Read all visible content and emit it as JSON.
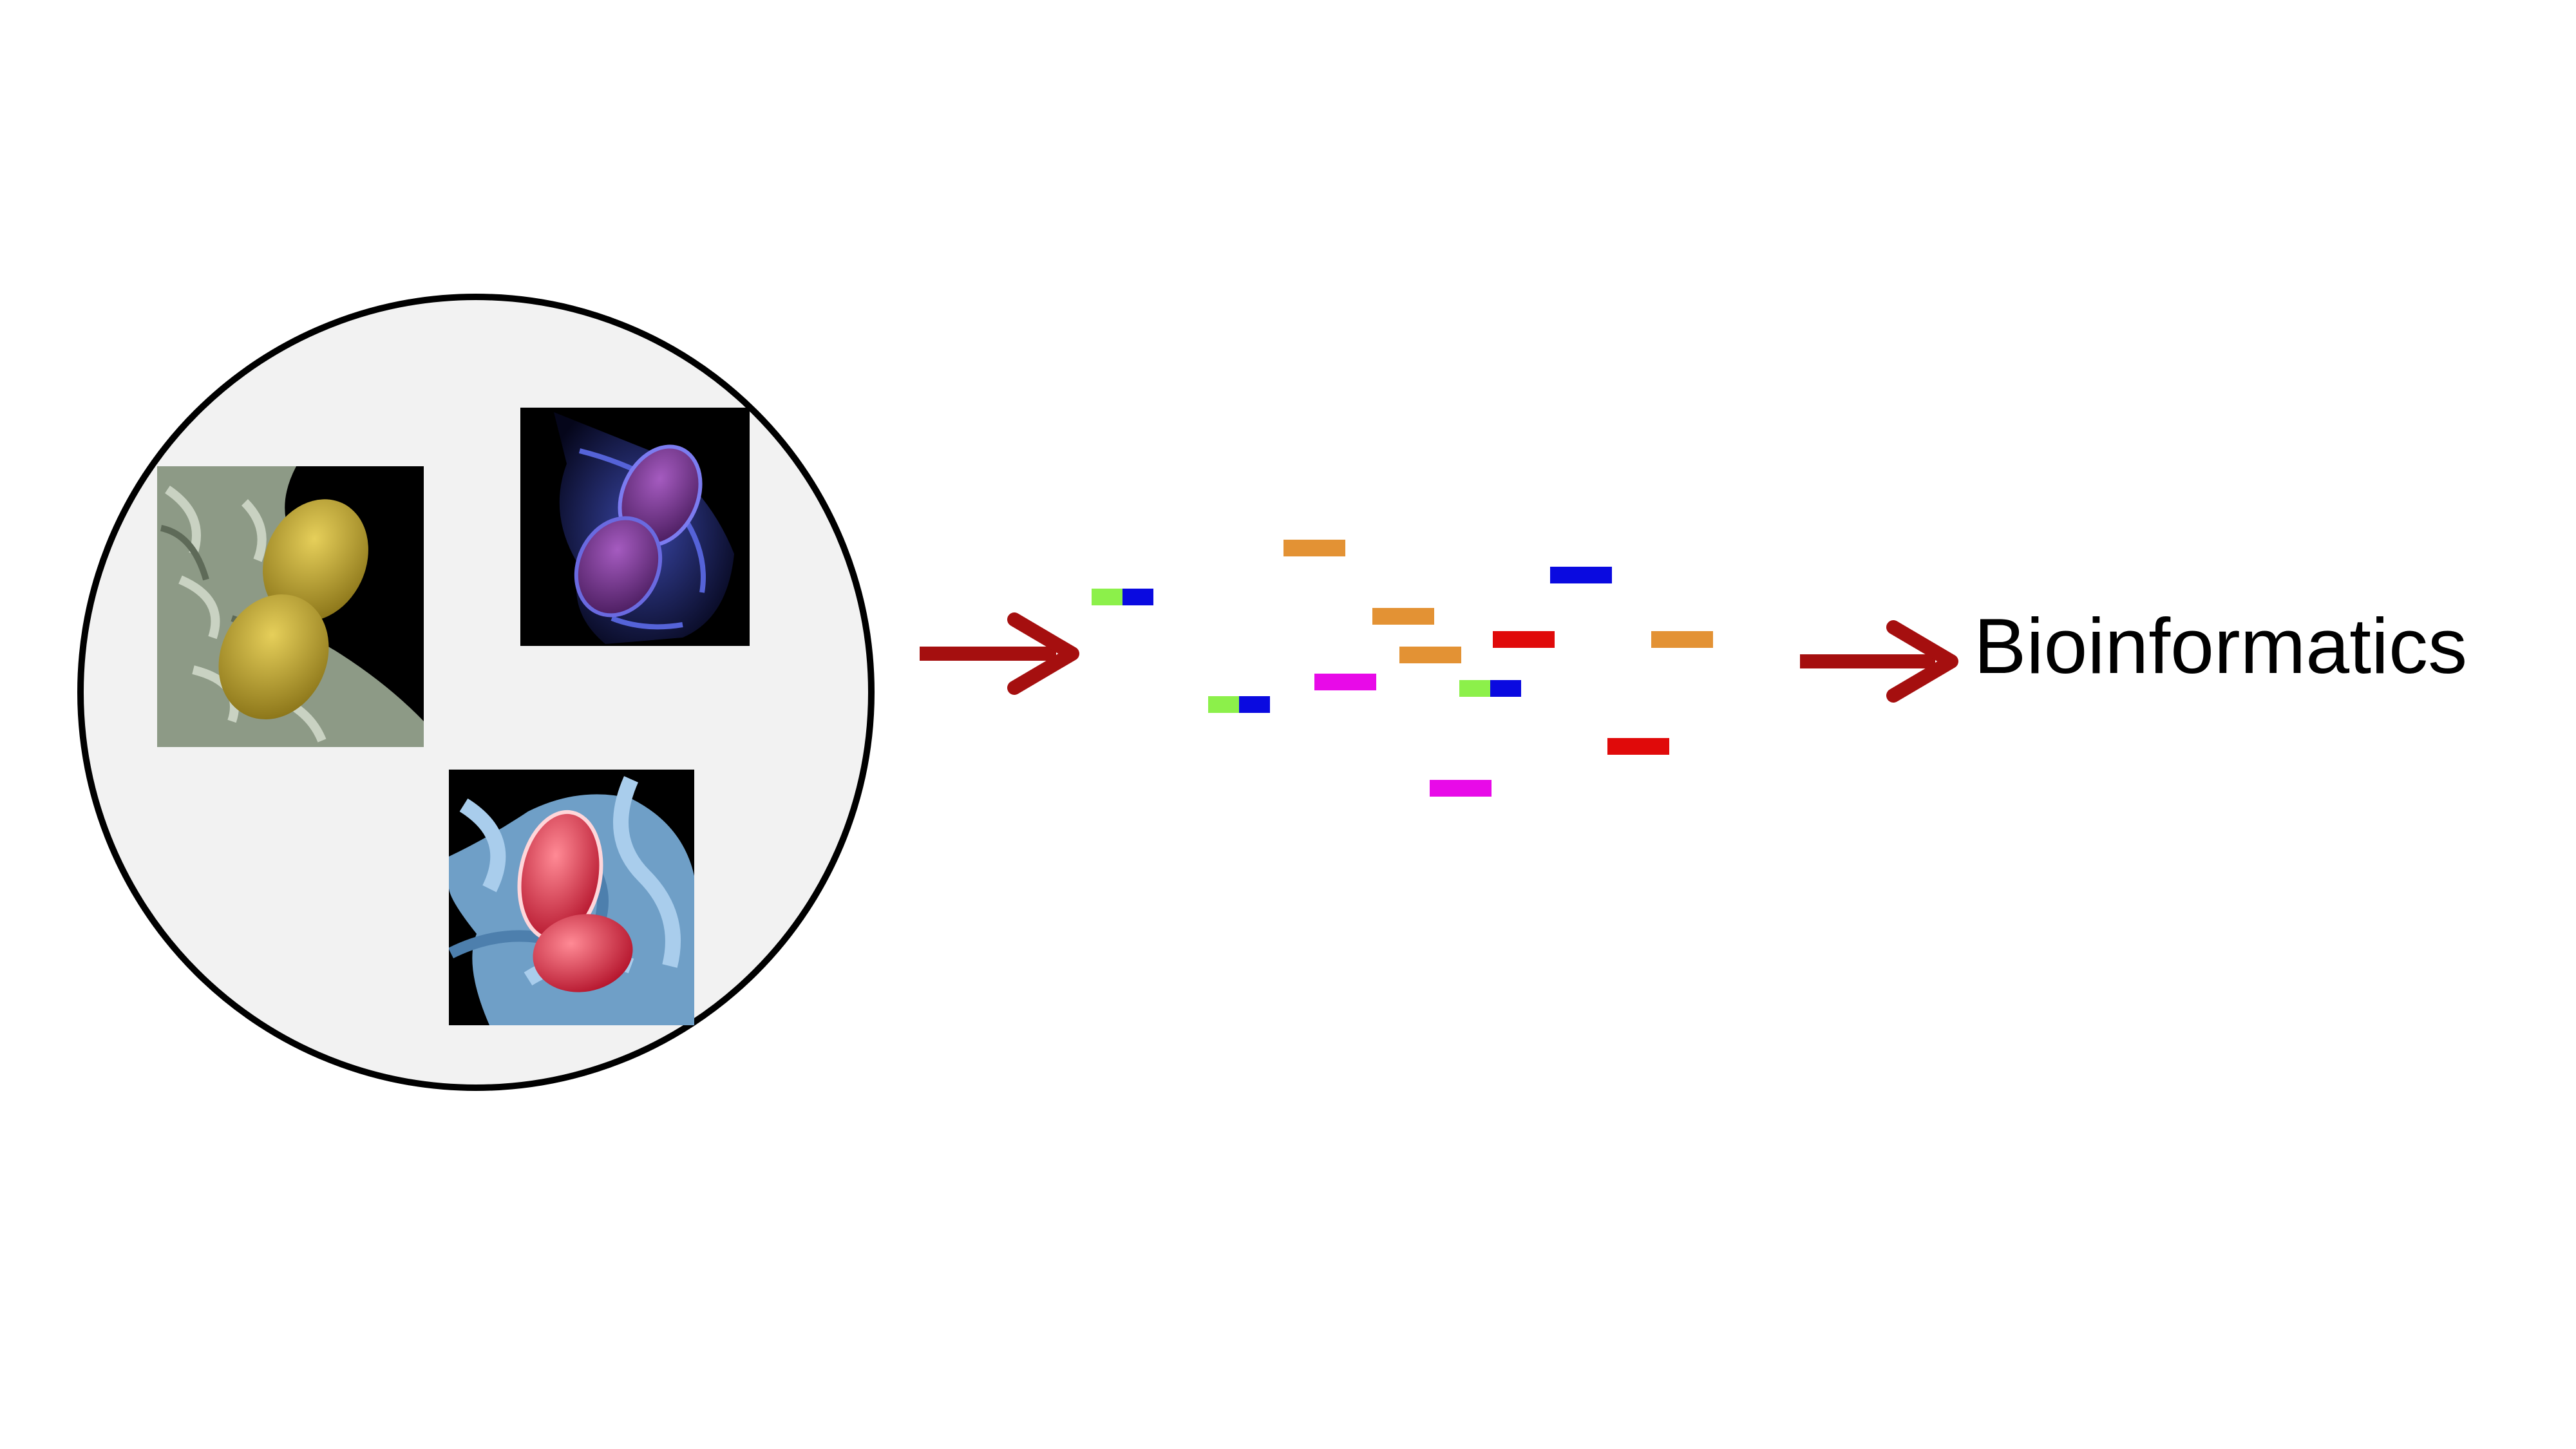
{
  "colors": {
    "background": "#ffffff",
    "sample_fill": "#f2f2f2",
    "sample_outline": "#000000",
    "arrow": "#a50f0f"
  },
  "sample": {
    "micrographs": [
      {
        "name": "yellow-bacteria-micrograph",
        "cell_color": "#b8a12a",
        "backdrop": "#8d9a86"
      },
      {
        "name": "purple-bacteria-micrograph",
        "cell_color": "#7b3a8f",
        "backdrop": "#242a6b"
      },
      {
        "name": "red-bacteria-micrograph",
        "cell_color": "#e02a3a",
        "backdrop": "#6f9fc7"
      }
    ]
  },
  "reads": [
    {
      "color": "#e39234"
    },
    {
      "color": "#8cf04a",
      "second_color": "#0a0ae0"
    },
    {
      "color": "#0a0ae0"
    },
    {
      "color": "#e39234"
    },
    {
      "color": "#e00a0a"
    },
    {
      "color": "#e39234"
    },
    {
      "color": "#e39234"
    },
    {
      "color": "#e80ae8"
    },
    {
      "color": "#8cf04a",
      "second_color": "#0a0ae0"
    },
    {
      "color": "#8cf04a",
      "second_color": "#0a0ae0"
    },
    {
      "color": "#e00a0a"
    },
    {
      "color": "#e80ae8"
    }
  ],
  "output_label": "Bioinformatics"
}
